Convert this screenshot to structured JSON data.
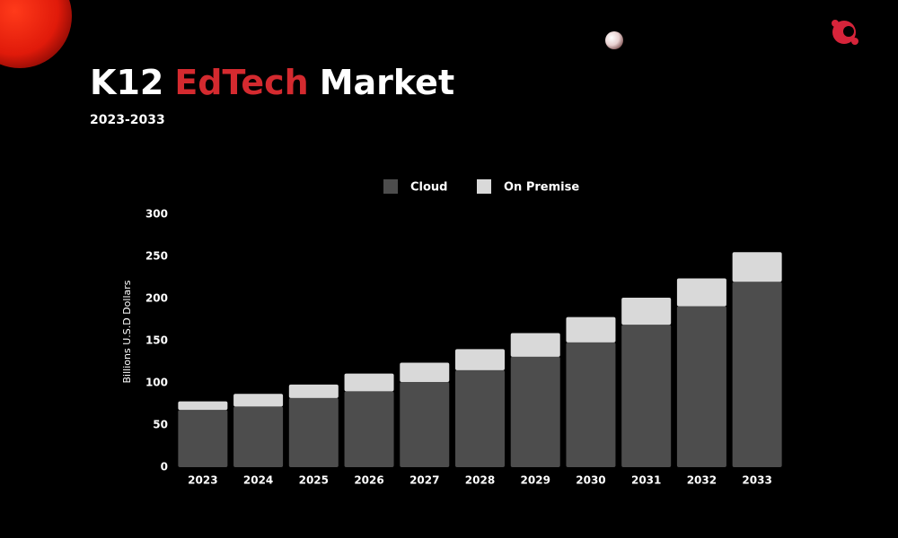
{
  "chart_data": {
    "type": "stacked_bar",
    "title_parts": [
      "K12",
      "EdTech",
      "Market"
    ],
    "subtitle": "2023-2033",
    "y_label": "Billions U.S.D Dollars",
    "categories": [
      "2023",
      "2024",
      "2025",
      "2026",
      "2027",
      "2028",
      "2029",
      "2030",
      "2031",
      "2032",
      "2033"
    ],
    "series": [
      {
        "name": "Cloud",
        "color": "#4d4d4d",
        "values": [
          68,
          72,
          82,
          90,
          101,
          115,
          131,
          148,
          169,
          191,
          220
        ]
      },
      {
        "name": "On Premise",
        "color": "#d9d9d9",
        "values": [
          10,
          15,
          16,
          21,
          23,
          25,
          28,
          30,
          32,
          33,
          35
        ]
      }
    ],
    "ylim": [
      0,
      300
    ],
    "yticks": [
      0,
      50,
      100,
      150,
      200,
      250,
      300
    ],
    "grid": false
  }
}
